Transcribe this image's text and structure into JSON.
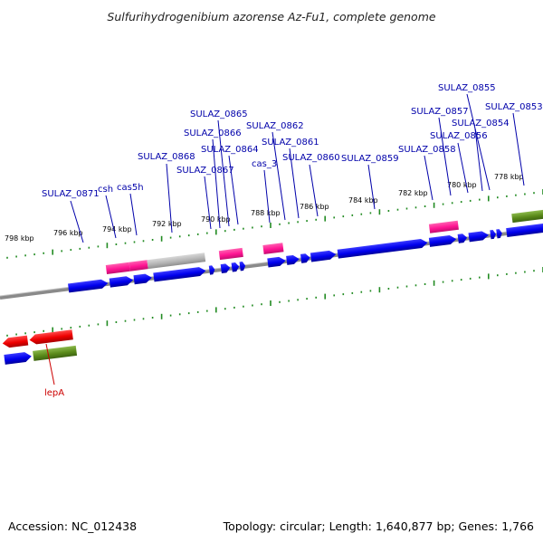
{
  "title": "Sulfurihydrogenibium azorense Az-Fu1, complete genome",
  "footer": {
    "accession": "Accession: NC_012438",
    "stats": "Topology: circular; Length: 1,640,877 bp; Genes: 1,766"
  },
  "colors": {
    "cds": "#0000ee",
    "rna": "#ff1493",
    "pseudo": "#b4b4b4",
    "olive": "#5a8a1a",
    "red": "#ee0000",
    "label_blue": "#0000aa",
    "label_red": "#cc0000",
    "ticks": "#228b22",
    "axis": "#888888"
  },
  "scale_labels": [
    "798 kbp",
    "796 kbp",
    "794 kbp",
    "792 kbp",
    "790 kbp",
    "788 kbp",
    "786 kbp",
    "784 kbp",
    "782 kbp",
    "780 kbp",
    "778 kbp"
  ],
  "gene_labels": [
    "SULAZ_0871",
    "csh",
    "cas5h",
    "SULAZ_0868",
    "SULAZ_0867",
    "SULAZ_0866",
    "SULAZ_0865",
    "SULAZ_0864",
    "cas_3",
    "SULAZ_0862",
    "SULAZ_0861",
    "SULAZ_0860",
    "SULAZ_0859",
    "SULAZ_0858",
    "SULAZ_0857",
    "SULAZ_0856",
    "SULAZ_0854",
    "SULAZ_0855",
    "SULAZ_0853",
    "lepA"
  ]
}
